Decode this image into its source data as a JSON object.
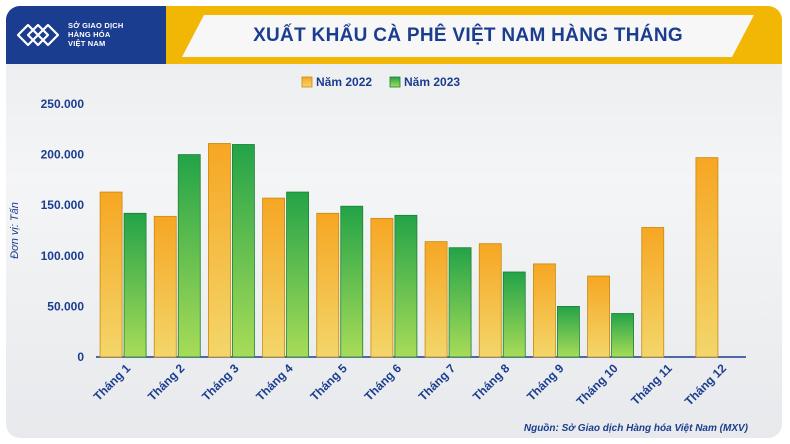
{
  "header": {
    "logo_lines": [
      "SỞ GIAO DỊCH",
      "HÀNG HÓA",
      "VIỆT NAM"
    ],
    "title": "XUẤT KHẨU CÀ PHÊ VIỆT NAM HÀNG THÁNG"
  },
  "source": "Nguồn: Sở Giao dịch Hàng hóa Việt Nam (MXV)",
  "colors": {
    "brand_blue": "#1b3d8f",
    "header_yellow": "#f2b705",
    "series_2022": "#f5b731",
    "series_2023": "#3bb54a"
  },
  "chart_data": {
    "type": "bar",
    "title": "XUẤT KHẨU CÀ PHÊ VIỆT NAM HÀNG THÁNG",
    "ylabel": "Đơn vị: Tấn",
    "xlabel": "",
    "ylim": [
      0,
      250000
    ],
    "y_ticks": [
      "0",
      "50.000",
      "100.000",
      "150.000",
      "200.000",
      "250.000"
    ],
    "grid": false,
    "legend_position": "top-center",
    "categories": [
      "Tháng 1",
      "Tháng 2",
      "Tháng 3",
      "Tháng 4",
      "Tháng 5",
      "Tháng 6",
      "Tháng 7",
      "Tháng 8",
      "Tháng 9",
      "Tháng 10",
      "Tháng 11",
      "Tháng 12"
    ],
    "series": [
      {
        "name": "Năm 2022",
        "color": "#f5b731",
        "values": [
          163000,
          139000,
          211000,
          157000,
          142000,
          137000,
          114000,
          112000,
          92000,
          80000,
          128000,
          197000
        ]
      },
      {
        "name": "Năm 2023",
        "color": "#3bb54a",
        "values": [
          142000,
          200000,
          210000,
          163000,
          149000,
          140000,
          108000,
          84000,
          50000,
          43000,
          null,
          null
        ]
      }
    ]
  }
}
